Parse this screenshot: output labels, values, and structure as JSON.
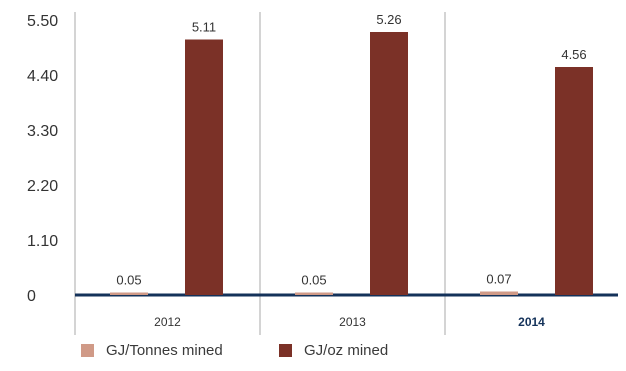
{
  "chart_data": {
    "type": "bar",
    "categories": [
      "2012",
      "2013",
      "2014"
    ],
    "highlight_category": "2014",
    "series": [
      {
        "name": "GJ/Tonnes mined",
        "values": [
          0.05,
          0.05,
          0.07
        ],
        "color": "#d09a87"
      },
      {
        "name": "GJ/oz mined",
        "values": [
          5.11,
          5.26,
          4.56
        ],
        "color": "#7b3127"
      }
    ],
    "data_labels": {
      "GJ/Tonnes mined": [
        "0.05",
        "0.05",
        "0.07"
      ],
      "GJ/oz mined": [
        "5.11",
        "5.26",
        "4.56"
      ]
    },
    "yticks": [
      "0",
      "1.10",
      "2.20",
      "3.30",
      "4.40",
      "5.50"
    ],
    "ylim": [
      0,
      5.5
    ],
    "grid": false,
    "legend_position": "bottom-left",
    "colors": {
      "baseline": "#14325a",
      "highlight_text": "#14325a",
      "axis_line": "#aaaaaa",
      "text": "#333333"
    }
  }
}
